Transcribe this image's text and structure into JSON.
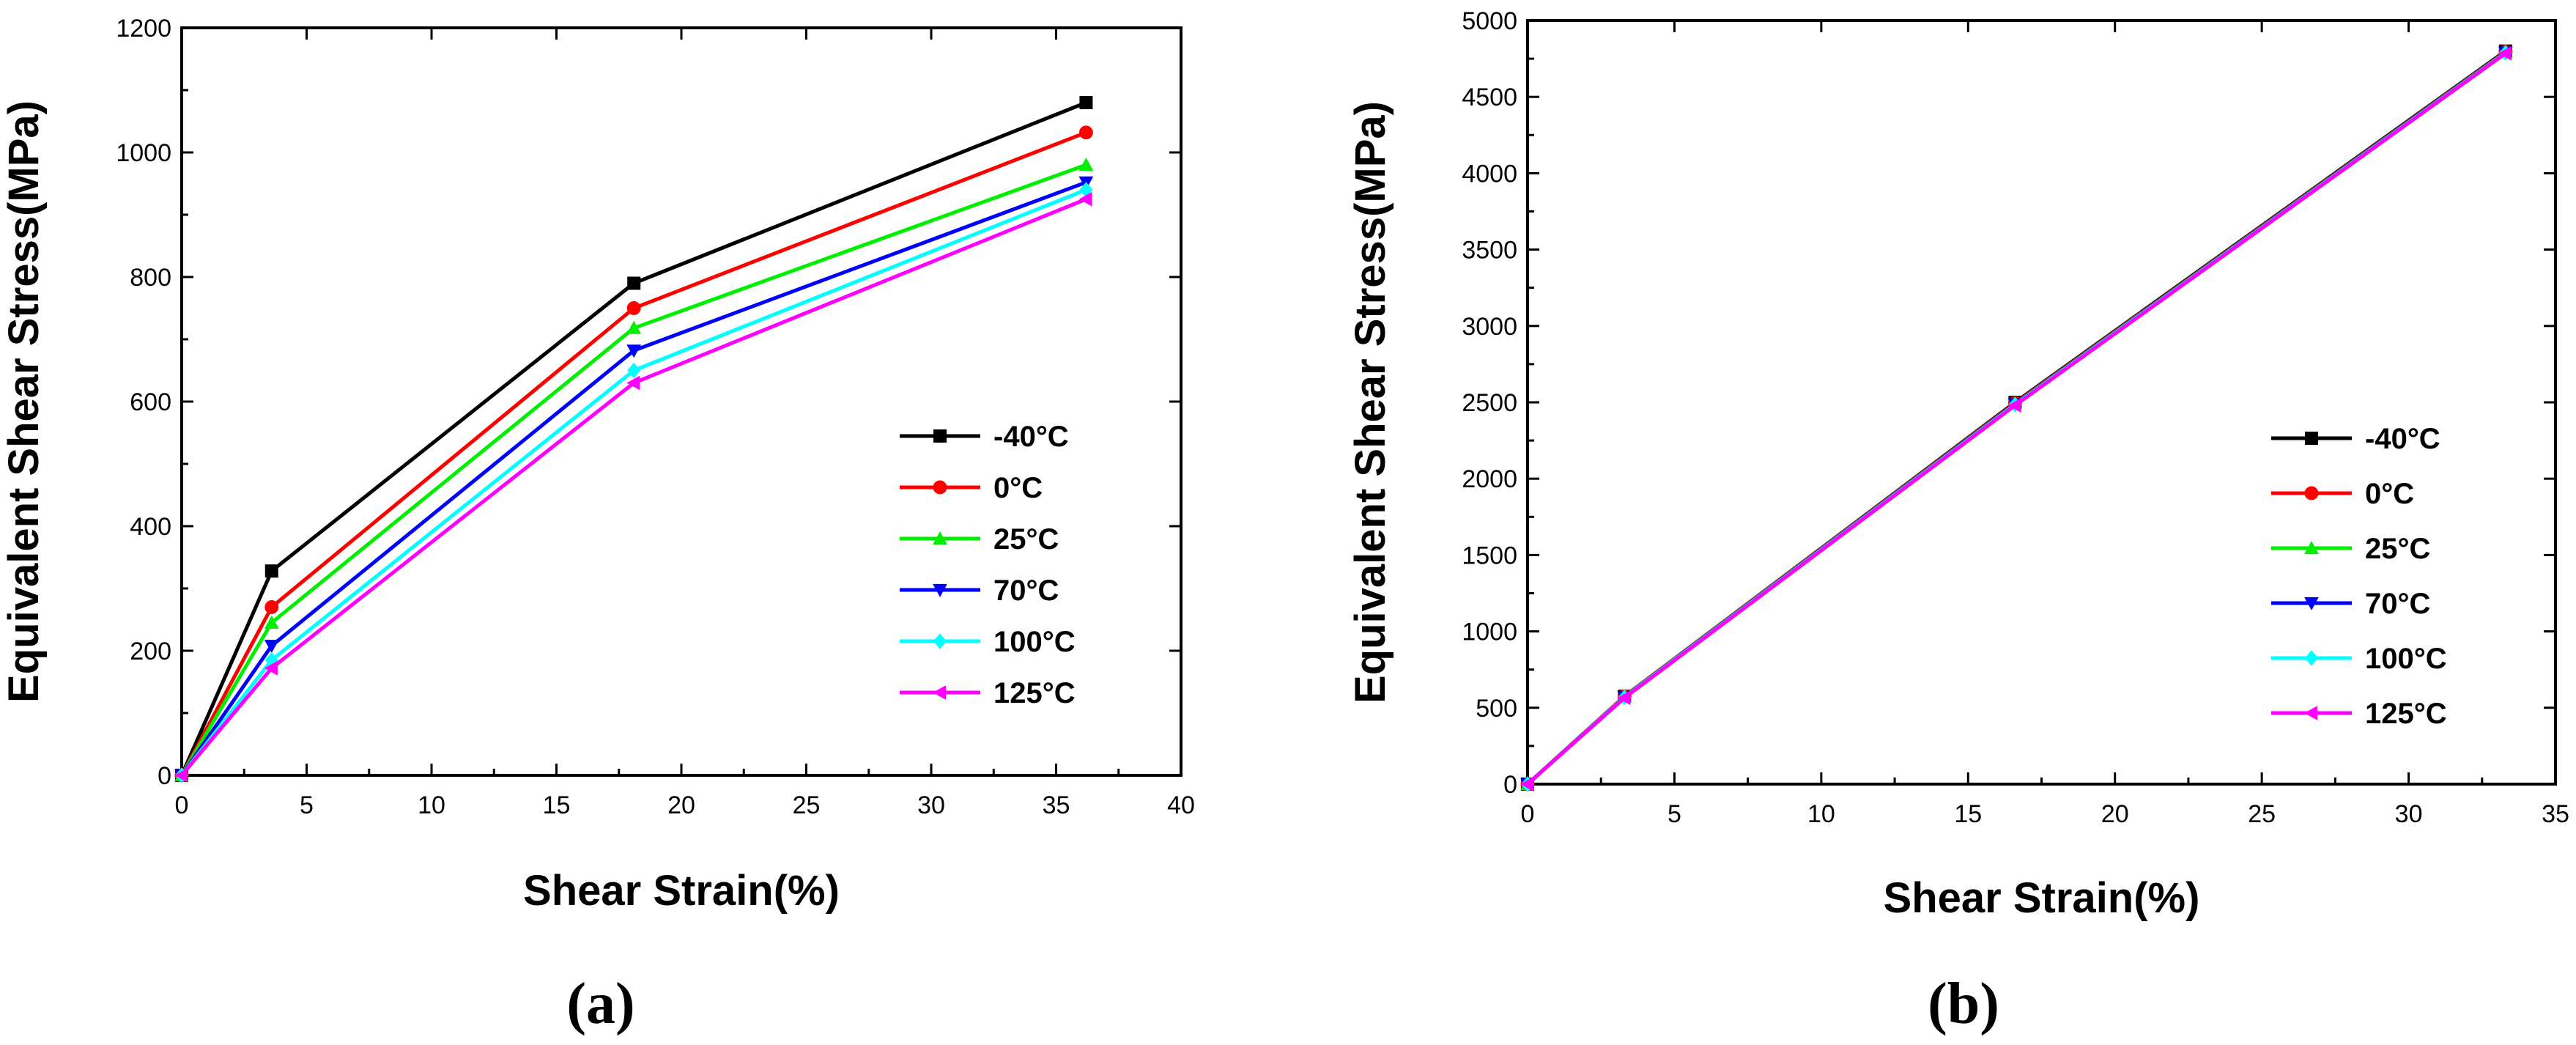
{
  "chart_data": [
    {
      "type": "line",
      "panel_label": "a",
      "xlabel": "Shear Strain(%)",
      "ylabel": "Equivalent Shear Stress(MPa)",
      "xlim": [
        0,
        40
      ],
      "ylim": [
        0,
        1200
      ],
      "xticks": [
        0,
        5,
        10,
        15,
        20,
        25,
        30,
        35,
        40
      ],
      "yticks": [
        0,
        200,
        400,
        600,
        800,
        1000,
        1200
      ],
      "legend_position": "right",
      "x": [
        0,
        3.6,
        18.1,
        36.2
      ],
      "series": [
        {
          "name": "-40°C",
          "temp": "-40",
          "color": "#000000",
          "marker": "square",
          "values": [
            0,
            328,
            790,
            1080
          ]
        },
        {
          "name": "0°C",
          "temp": "0",
          "color": "#ff0000",
          "marker": "circle",
          "values": [
            0,
            270,
            750,
            1032
          ]
        },
        {
          "name": "25°C",
          "temp": "25",
          "color": "#00ee00",
          "marker": "triangle-up",
          "values": [
            0,
            245,
            718,
            980
          ]
        },
        {
          "name": "70°C",
          "temp": "70",
          "color": "#0000ff",
          "marker": "triangle-down",
          "values": [
            0,
            208,
            682,
            952
          ]
        },
        {
          "name": "100°C",
          "temp": "100",
          "color": "#00ffff",
          "marker": "diamond",
          "values": [
            0,
            185,
            650,
            940
          ]
        },
        {
          "name": "125°C",
          "temp": "125",
          "color": "#ff00ff",
          "marker": "triangle-left",
          "values": [
            0,
            172,
            630,
            925
          ]
        }
      ]
    },
    {
      "type": "line",
      "panel_label": "b",
      "xlabel": "Shear Strain(%)",
      "ylabel": "Equivalent Shear Stress(MPa)",
      "xlim": [
        0,
        35
      ],
      "ylim": [
        0,
        5000
      ],
      "xticks": [
        0,
        5,
        10,
        15,
        20,
        25,
        30,
        35
      ],
      "yticks": [
        0,
        500,
        1000,
        1500,
        2000,
        2500,
        3000,
        3500,
        4000,
        4500,
        5000
      ],
      "legend_position": "right",
      "x": [
        0,
        3.3,
        16.6,
        33.3
      ],
      "series": [
        {
          "name": "-40°C",
          "temp": "-40",
          "color": "#000000",
          "marker": "square",
          "values": [
            0,
            575,
            2500,
            4800
          ]
        },
        {
          "name": "0°C",
          "temp": "0",
          "color": "#ff0000",
          "marker": "circle",
          "values": [
            0,
            575,
            2495,
            4795
          ]
        },
        {
          "name": "25°C",
          "temp": "25",
          "color": "#00ee00",
          "marker": "triangle-up",
          "values": [
            0,
            572,
            2490,
            4792
          ]
        },
        {
          "name": "70°C",
          "temp": "70",
          "color": "#0000ff",
          "marker": "triangle-down",
          "values": [
            0,
            570,
            2488,
            4790
          ]
        },
        {
          "name": "100°C",
          "temp": "100",
          "color": "#00ffff",
          "marker": "diamond",
          "values": [
            0,
            568,
            2485,
            4788
          ]
        },
        {
          "name": "125°C",
          "temp": "125",
          "color": "#ff00ff",
          "marker": "triangle-left",
          "values": [
            0,
            565,
            2480,
            4785
          ]
        }
      ]
    }
  ]
}
